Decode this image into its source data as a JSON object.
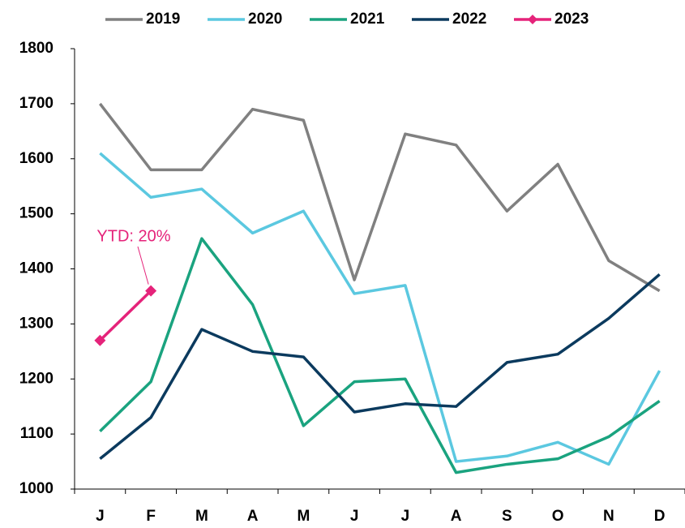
{
  "chart_data": {
    "type": "line",
    "categories": [
      "J",
      "F",
      "M",
      "A",
      "M",
      "J",
      "J",
      "A",
      "S",
      "O",
      "N",
      "D"
    ],
    "series": [
      {
        "name": "2019",
        "color": "#808080",
        "values": [
          1700,
          1580,
          1580,
          1690,
          1670,
          1380,
          1645,
          1625,
          1505,
          1590,
          1415,
          1360
        ]
      },
      {
        "name": "2020",
        "color": "#5bc8e0",
        "values": [
          1610,
          1530,
          1545,
          1465,
          1505,
          1355,
          1370,
          1050,
          1060,
          1085,
          1045,
          1215
        ]
      },
      {
        "name": "2021",
        "color": "#1aa37f",
        "values": [
          1105,
          1195,
          1455,
          1335,
          1115,
          1195,
          1200,
          1030,
          1045,
          1055,
          1095,
          1160
        ]
      },
      {
        "name": "2022",
        "color": "#0b3a5e",
        "values": [
          1055,
          1130,
          1290,
          1250,
          1240,
          1140,
          1155,
          1150,
          1230,
          1245,
          1310,
          1390
        ]
      },
      {
        "name": "2023",
        "color": "#e5237a",
        "marker": "diamond",
        "values": [
          1270,
          1360,
          null,
          null,
          null,
          null,
          null,
          null,
          null,
          null,
          null,
          null
        ]
      }
    ],
    "annotations": [
      {
        "text": "YTD: 20%",
        "series": 4,
        "index": 1
      }
    ],
    "ylim": [
      1000,
      1800
    ],
    "yticks": [
      1000,
      1100,
      1200,
      1300,
      1400,
      1500,
      1600,
      1700,
      1800
    ],
    "grid": false,
    "legend": "top"
  }
}
